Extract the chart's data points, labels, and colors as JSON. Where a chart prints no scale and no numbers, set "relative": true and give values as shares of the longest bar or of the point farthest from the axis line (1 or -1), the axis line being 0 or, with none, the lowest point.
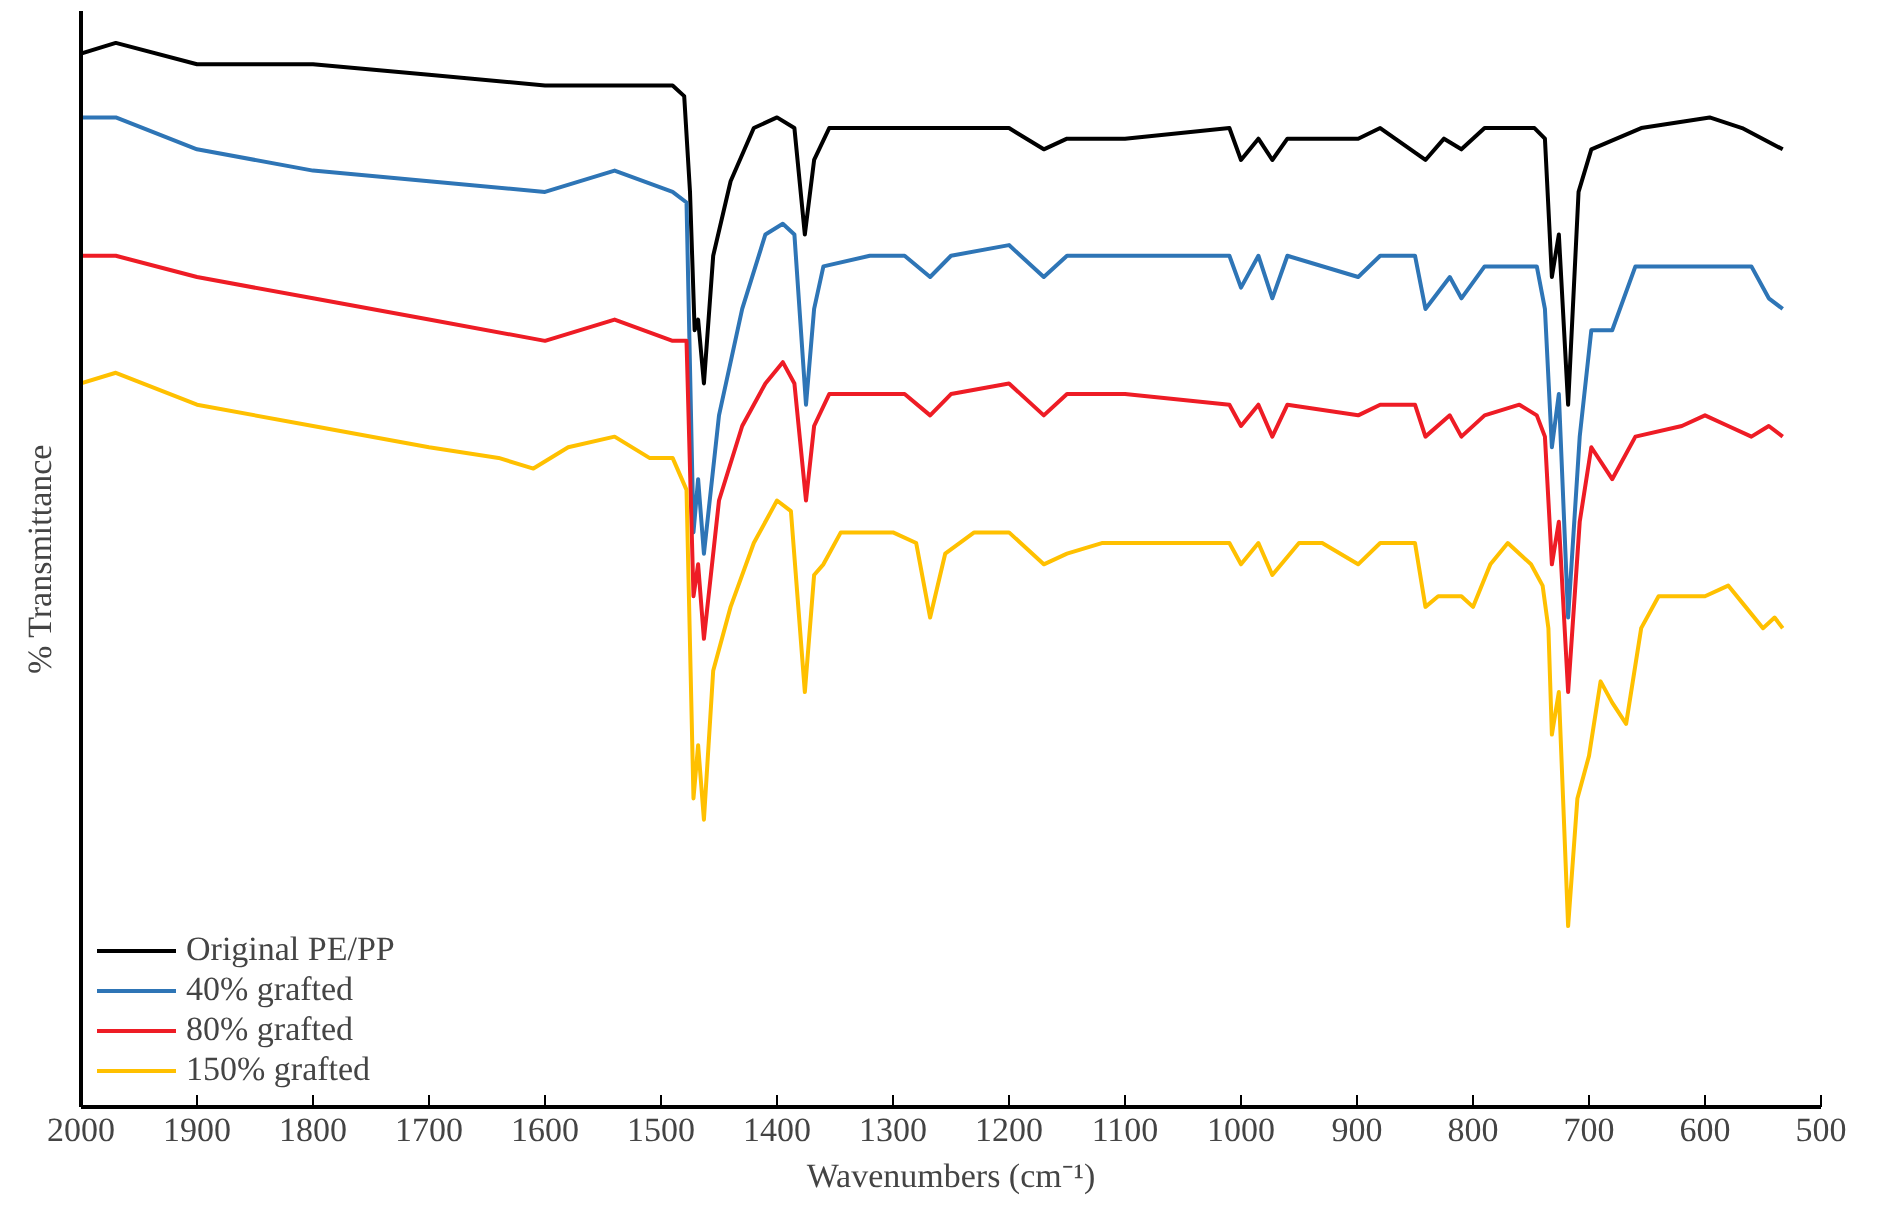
{
  "chart_data": {
    "type": "line",
    "relative": true,
    "xlabel": "Wavenumbers (cm⁻¹)",
    "ylabel": "% Transmittance",
    "xlim": [
      2000,
      500
    ],
    "xticks": [
      2000,
      1900,
      1800,
      1700,
      1600,
      1500,
      1400,
      1300,
      1200,
      1100,
      1000,
      900,
      800,
      700,
      600,
      500
    ],
    "legend": "bottom left",
    "grid": false,
    "marker": "none",
    "line_style": "solid",
    "tick_labels": "x",
    "series": [
      {
        "name": "Original PE/PP",
        "color": "#000000",
        "x": [
          2000,
          1970,
          1900,
          1800,
          1700,
          1600,
          1530,
          1490,
          1480,
          1475,
          1471,
          1468,
          1463,
          1455,
          1440,
          1420,
          1400,
          1385,
          1376,
          1368,
          1355,
          1320,
          1260,
          1200,
          1170,
          1150,
          1100,
          1010,
          1000,
          985,
          973,
          960,
          899,
          880,
          841,
          825,
          810,
          790,
          747,
          738,
          732,
          726,
          718,
          709,
          698,
          655,
          596,
          568,
          533
        ],
        "values": [
          0.99,
          1.0,
          0.98,
          0.98,
          0.97,
          0.96,
          0.96,
          0.96,
          0.95,
          0.86,
          0.73,
          0.74,
          0.68,
          0.8,
          0.87,
          0.92,
          0.93,
          0.92,
          0.82,
          0.89,
          0.92,
          0.92,
          0.92,
          0.92,
          0.9,
          0.91,
          0.91,
          0.92,
          0.89,
          0.91,
          0.89,
          0.91,
          0.91,
          0.92,
          0.89,
          0.91,
          0.9,
          0.92,
          0.92,
          0.91,
          0.78,
          0.82,
          0.66,
          0.86,
          0.9,
          0.92,
          0.93,
          0.92,
          0.9
        ]
      },
      {
        "name": "40% grafted",
        "color": "#2e75b6",
        "x": [
          2000,
          1970,
          1900,
          1800,
          1700,
          1600,
          1540,
          1490,
          1478,
          1472,
          1468,
          1463,
          1450,
          1430,
          1410,
          1395,
          1385,
          1375,
          1368,
          1360,
          1320,
          1290,
          1268,
          1250,
          1200,
          1170,
          1150,
          1100,
          1010,
          1000,
          985,
          973,
          960,
          899,
          880,
          850,
          841,
          820,
          810,
          790,
          760,
          745,
          738,
          732,
          726,
          718,
          708,
          698,
          680,
          660,
          620,
          580,
          560,
          545,
          533
        ],
        "values": [
          0.93,
          0.93,
          0.9,
          0.88,
          0.87,
          0.86,
          0.88,
          0.86,
          0.85,
          0.54,
          0.59,
          0.52,
          0.65,
          0.75,
          0.82,
          0.83,
          0.82,
          0.66,
          0.75,
          0.79,
          0.8,
          0.8,
          0.78,
          0.8,
          0.81,
          0.78,
          0.8,
          0.8,
          0.8,
          0.77,
          0.8,
          0.76,
          0.8,
          0.78,
          0.8,
          0.8,
          0.75,
          0.78,
          0.76,
          0.79,
          0.79,
          0.79,
          0.75,
          0.62,
          0.67,
          0.46,
          0.63,
          0.73,
          0.73,
          0.79,
          0.79,
          0.79,
          0.79,
          0.76,
          0.75
        ]
      },
      {
        "name": "80% grafted",
        "color": "#ee1c25",
        "x": [
          2000,
          1970,
          1900,
          1800,
          1700,
          1600,
          1540,
          1490,
          1478,
          1472,
          1468,
          1463,
          1450,
          1430,
          1410,
          1395,
          1385,
          1375,
          1368,
          1355,
          1320,
          1290,
          1268,
          1250,
          1200,
          1170,
          1150,
          1100,
          1010,
          1000,
          985,
          973,
          960,
          899,
          880,
          850,
          841,
          820,
          810,
          790,
          760,
          745,
          738,
          732,
          726,
          718,
          708,
          698,
          680,
          660,
          620,
          600,
          580,
          560,
          545,
          533
        ],
        "values": [
          0.8,
          0.8,
          0.78,
          0.76,
          0.74,
          0.72,
          0.74,
          0.72,
          0.72,
          0.48,
          0.51,
          0.44,
          0.57,
          0.64,
          0.68,
          0.7,
          0.68,
          0.57,
          0.64,
          0.67,
          0.67,
          0.67,
          0.65,
          0.67,
          0.68,
          0.65,
          0.67,
          0.67,
          0.66,
          0.64,
          0.66,
          0.63,
          0.66,
          0.65,
          0.66,
          0.66,
          0.63,
          0.65,
          0.63,
          0.65,
          0.66,
          0.65,
          0.63,
          0.51,
          0.55,
          0.39,
          0.55,
          0.62,
          0.59,
          0.63,
          0.64,
          0.65,
          0.64,
          0.63,
          0.64,
          0.63
        ]
      },
      {
        "name": "150% grafted",
        "color": "#ffc000",
        "x": [
          2000,
          1970,
          1900,
          1800,
          1700,
          1640,
          1610,
          1580,
          1540,
          1510,
          1490,
          1478,
          1472,
          1468,
          1463,
          1455,
          1440,
          1420,
          1400,
          1388,
          1376,
          1368,
          1360,
          1345,
          1320,
          1300,
          1280,
          1268,
          1255,
          1230,
          1200,
          1170,
          1150,
          1120,
          1100,
          1050,
          1010,
          1000,
          985,
          973,
          950,
          930,
          899,
          880,
          850,
          841,
          830,
          820,
          810,
          800,
          785,
          770,
          750,
          740,
          735,
          732,
          726,
          718,
          710,
          700,
          690,
          680,
          668,
          655,
          640,
          620,
          600,
          580,
          565,
          550,
          540,
          533
        ],
        "values": [
          0.68,
          0.69,
          0.66,
          0.64,
          0.62,
          0.61,
          0.6,
          0.62,
          0.63,
          0.61,
          0.61,
          0.58,
          0.29,
          0.34,
          0.27,
          0.41,
          0.47,
          0.53,
          0.57,
          0.56,
          0.39,
          0.5,
          0.51,
          0.54,
          0.54,
          0.54,
          0.53,
          0.46,
          0.52,
          0.54,
          0.54,
          0.51,
          0.52,
          0.53,
          0.53,
          0.53,
          0.53,
          0.51,
          0.53,
          0.5,
          0.53,
          0.53,
          0.51,
          0.53,
          0.53,
          0.47,
          0.48,
          0.48,
          0.48,
          0.47,
          0.51,
          0.53,
          0.51,
          0.49,
          0.45,
          0.35,
          0.39,
          0.17,
          0.29,
          0.33,
          0.4,
          0.38,
          0.36,
          0.45,
          0.48,
          0.48,
          0.48,
          0.49,
          0.47,
          0.45,
          0.46,
          0.45
        ]
      }
    ]
  }
}
